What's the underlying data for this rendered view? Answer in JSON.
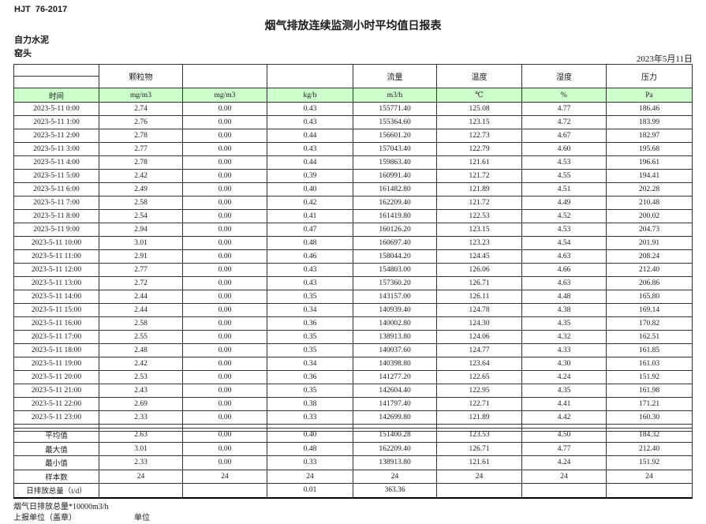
{
  "header": {
    "doc_code": "HJT  76-2017",
    "title": "烟气排放连续监测小时平均值日报表",
    "company": "自力水泥",
    "station": "窑头",
    "date": "2023年5月11日"
  },
  "table": {
    "group_headers": [
      "",
      "颗粒物",
      "",
      "",
      "流量",
      "温度",
      "湿度",
      "压力"
    ],
    "unit_row": [
      "时间",
      "mg/m3",
      "mg/m3",
      "kg/h",
      "m3/h",
      "℃",
      "%",
      "Pa"
    ],
    "rows": [
      [
        "2023-5-11 0:00",
        "2.74",
        "0.00",
        "0.43",
        "155771.40",
        "125.08",
        "4.77",
        "186.46"
      ],
      [
        "2023-5-11 1:00",
        "2.76",
        "0.00",
        "0.43",
        "155364.60",
        "123.15",
        "4.72",
        "183.99"
      ],
      [
        "2023-5-11 2:00",
        "2.78",
        "0.00",
        "0.44",
        "156601.20",
        "122.73",
        "4.67",
        "182.97"
      ],
      [
        "2023-5-11 3:00",
        "2.77",
        "0.00",
        "0.43",
        "157043.40",
        "122.79",
        "4.60",
        "195.68"
      ],
      [
        "2023-5-11 4:00",
        "2.78",
        "0.00",
        "0.44",
        "159863.40",
        "121.61",
        "4.53",
        "196.61"
      ],
      [
        "2023-5-11 5:00",
        "2.42",
        "0.00",
        "0.39",
        "160991.40",
        "121.72",
        "4.55",
        "194.41"
      ],
      [
        "2023-5-11 6:00",
        "2.49",
        "0.00",
        "0.40",
        "161482.80",
        "121.89",
        "4.51",
        "202.28"
      ],
      [
        "2023-5-11 7:00",
        "2.58",
        "0.00",
        "0.42",
        "162209.40",
        "121.72",
        "4.49",
        "210.48"
      ],
      [
        "2023-5-11 8:00",
        "2.54",
        "0.00",
        "0.41",
        "161419.80",
        "122.53",
        "4.52",
        "200.02"
      ],
      [
        "2023-5-11 9:00",
        "2.94",
        "0.00",
        "0.47",
        "160126.20",
        "123.15",
        "4.53",
        "204.73"
      ],
      [
        "2023-5-11 10:00",
        "3.01",
        "0.00",
        "0.48",
        "160697.40",
        "123.23",
        "4.54",
        "201.91"
      ],
      [
        "2023-5-11 11:00",
        "2.91",
        "0.00",
        "0.46",
        "158044.20",
        "124.45",
        "4.63",
        "208.24"
      ],
      [
        "2023-5-11 12:00",
        "2.77",
        "0.00",
        "0.43",
        "154803.00",
        "126.06",
        "4.66",
        "212.40"
      ],
      [
        "2023-5-11 13:00",
        "2.72",
        "0.00",
        "0.43",
        "157360.20",
        "126.71",
        "4.63",
        "206.86"
      ],
      [
        "2023-5-11 14:00",
        "2.44",
        "0.00",
        "0.35",
        "143157.00",
        "126.11",
        "4.48",
        "165.80"
      ],
      [
        "2023-5-11 15:00",
        "2.44",
        "0.00",
        "0.34",
        "140939.40",
        "124.78",
        "4.38",
        "169.14"
      ],
      [
        "2023-5-11 16:00",
        "2.58",
        "0.00",
        "0.36",
        "140002.80",
        "124.30",
        "4.35",
        "170.82"
      ],
      [
        "2023-5-11 17:00",
        "2.55",
        "0.00",
        "0.35",
        "138913.80",
        "124.06",
        "4.32",
        "162.51"
      ],
      [
        "2023-5-11 18:00",
        "2.48",
        "0.00",
        "0.35",
        "140037.60",
        "124.77",
        "4.33",
        "161.85"
      ],
      [
        "2023-5-11 19:00",
        "2.42",
        "0.00",
        "0.34",
        "140398.80",
        "123.64",
        "4.30",
        "161.03"
      ],
      [
        "2023-5-11 20:00",
        "2.53",
        "0.00",
        "0.36",
        "141277.20",
        "122.65",
        "4.24",
        "151.92"
      ],
      [
        "2023-5-11 21:00",
        "2.43",
        "0.00",
        "0.35",
        "142604.40",
        "122.95",
        "4.35",
        "161.98"
      ],
      [
        "2023-5-11 22:00",
        "2.69",
        "0.00",
        "0.38",
        "141797.40",
        "122.71",
        "4.41",
        "171.21"
      ],
      [
        "2023-5-11 23:00",
        "2.33",
        "0.00",
        "0.33",
        "142699.80",
        "121.89",
        "4.42",
        "160.30"
      ]
    ],
    "summary": [
      [
        "平均值",
        "2.63",
        "0.00",
        "0.40",
        "151400.28",
        "123.53",
        "4.50",
        "184.32"
      ],
      [
        "最大值",
        "3.01",
        "0.00",
        "0.48",
        "162209.40",
        "126.71",
        "4.77",
        "212.40"
      ],
      [
        "最小值",
        "2.33",
        "0.00",
        "0.33",
        "138913.80",
        "121.61",
        "4.24",
        "151.92"
      ],
      [
        "样本数",
        "24",
        "24",
        "24",
        "24",
        "24",
        "24",
        "24"
      ],
      [
        "日排放总量（t/d）",
        "",
        "",
        "0.01",
        "363.36",
        "",
        "",
        ""
      ]
    ]
  },
  "footer": {
    "note": "烟气日排放总量*10000m3/h",
    "report_unit": "上报单位（盖章）",
    "unit_label": "单位"
  },
  "colors": {
    "unit_row_green": "#ccffcc",
    "grid_line": "#333333"
  }
}
